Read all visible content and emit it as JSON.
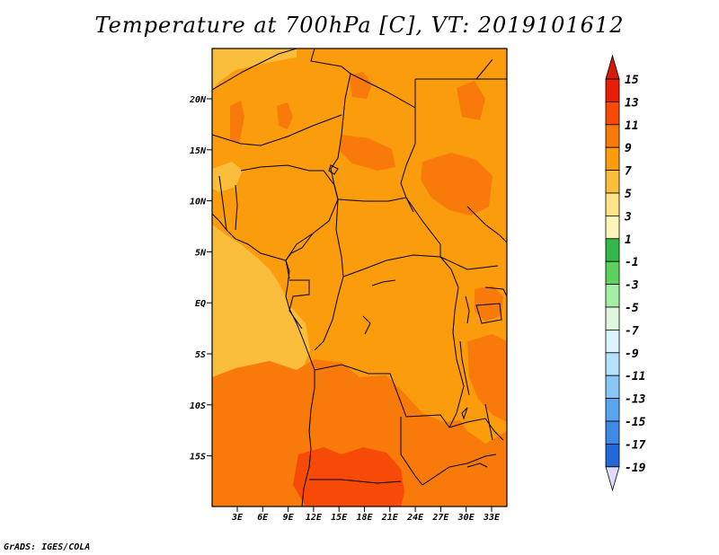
{
  "title": "Temperature at 700hPa [C], VT: 2019101612",
  "credit": "GrADS: IGES/COLA",
  "map": {
    "lon_ticks": [
      "3E",
      "6E",
      "9E",
      "12E",
      "15E",
      "18E",
      "21E",
      "24E",
      "27E",
      "30E",
      "33E"
    ],
    "lat_ticks": [
      "20N",
      "15N",
      "10N",
      "5N",
      "EQ",
      "5S",
      "10S",
      "15S"
    ]
  },
  "colorbar": {
    "levels": [
      "15",
      "13",
      "11",
      "9",
      "7",
      "5",
      "3",
      "1",
      "-1",
      "-3",
      "-5",
      "-7",
      "-9",
      "-11",
      "-13",
      "-15",
      "-17",
      "-19"
    ],
    "colors": [
      "#e81e06",
      "#f64a06",
      "#f87a0a",
      "#fb9c0c",
      "#fbbe3c",
      "#fde488",
      "#fcf7b8",
      "#34b84a",
      "#5cd25c",
      "#a5eea5",
      "#dff7df",
      "#def4fc",
      "#b4e2fc",
      "#87c7f7",
      "#5ba5f0",
      "#3d89e3",
      "#2268d8",
      "#1446bc",
      "#0c24a0",
      "#0c1070"
    ],
    "under_color": "#dddcfa",
    "over_color": "#d71a06"
  }
}
